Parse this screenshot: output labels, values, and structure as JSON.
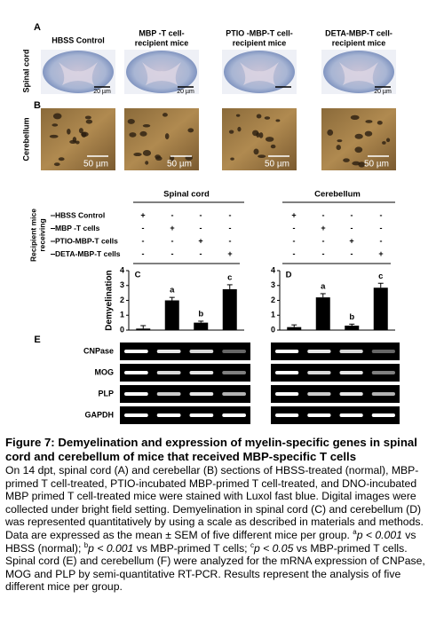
{
  "figure": {
    "panel_letters": {
      "a": "A",
      "b": "B",
      "e": "E"
    },
    "row_labels": [
      "Spinal cord",
      "Cerebellum"
    ],
    "column_labels": [
      [
        "HBSS Control"
      ],
      [
        "MBP -T cell-",
        "recipient mice"
      ],
      [
        "PTIO -MBP-T cell-",
        "recipient mice"
      ],
      [
        "DETA-MBP-T cell-",
        "recipient mice"
      ]
    ],
    "scale_bars": {
      "a": "20 µm",
      "b": "50 µm"
    },
    "section_headers": [
      "Spinal cord",
      "Cerebellum"
    ],
    "design": {
      "label": [
        "Recipient mice",
        "receiving"
      ],
      "rows": [
        {
          "label": "HBSS Control",
          "signs": [
            "+",
            "-",
            "-",
            "-"
          ]
        },
        {
          "label": "MBP -T cells",
          "signs": [
            "-",
            "+",
            "-",
            "-"
          ]
        },
        {
          "label": "PTIO-MBP-T cells",
          "signs": [
            "-",
            "-",
            "+",
            "-"
          ]
        },
        {
          "label": "DETA-MBP-T cells",
          "signs": [
            "-",
            "-",
            "-",
            "+"
          ]
        }
      ]
    },
    "gel_labels": [
      "CNPase",
      "MOG",
      "PLP",
      "GAPDH"
    ]
  },
  "chart_data": [
    {
      "type": "bar",
      "panel": "C",
      "ylabel": "Demyelination",
      "values": [
        0.1,
        2.0,
        0.5,
        2.75
      ],
      "errors": [
        0.2,
        0.2,
        0.1,
        0.3
      ],
      "bar_labels": [
        null,
        "a",
        "b",
        "c"
      ],
      "ylim": [
        0,
        4
      ],
      "yticks": [
        0,
        1,
        2,
        3,
        4
      ],
      "color": "#000000"
    },
    {
      "type": "bar",
      "panel": "D",
      "values": [
        0.2,
        2.2,
        0.3,
        2.85
      ],
      "errors": [
        0.15,
        0.25,
        0.1,
        0.3
      ],
      "bar_labels": [
        null,
        "a",
        "b",
        "c"
      ],
      "ylim": [
        0,
        4
      ],
      "yticks": [
        0,
        1,
        2,
        3,
        4
      ],
      "color": "#000000"
    }
  ],
  "caption": {
    "title": "Figure 7: Demyelination and expression of myelin-specific genes in spinal cord and cerebellum of mice that received MBP-specific T cells",
    "body": [
      {
        "text": "On 14 dpt, spinal cord (A) and cerebellar (B) sections of HBSS-treated (normal), MBP-primed T cell-treated, PTIO-incubated MBP-primed T cell-treated, and DNO-incubated MBP primed T cell-treated mice were stained with Luxol fast blue. Digital images were collected under bright field setting. Demyelination in spinal cord (C) and cerebellum (D) was represented quantitatively by using a scale as described in materials and methods. Data are expressed as the mean ± SEM of five different mice per group. ",
        "style": "n"
      },
      {
        "text": "a",
        "style": "sup"
      },
      {
        "text": "p < 0.001",
        "style": "i"
      },
      {
        "text": " vs HBSS (normal); ",
        "style": "n"
      },
      {
        "text": "b",
        "style": "sup"
      },
      {
        "text": "p < 0.001",
        "style": "i"
      },
      {
        "text": " vs MBP-primed T cells; ",
        "style": "n"
      },
      {
        "text": "c",
        "style": "sup"
      },
      {
        "text": "p < 0.05",
        "style": "i"
      },
      {
        "text": " vs MBP-primed T cells. Spinal cord (E) and cerebellum (F) were analyzed for the mRNA expression of CNPase, MOG and PLP by semi-quantitative RT-PCR. Results represent the analysis of five different mice per group.",
        "style": "n"
      }
    ]
  }
}
